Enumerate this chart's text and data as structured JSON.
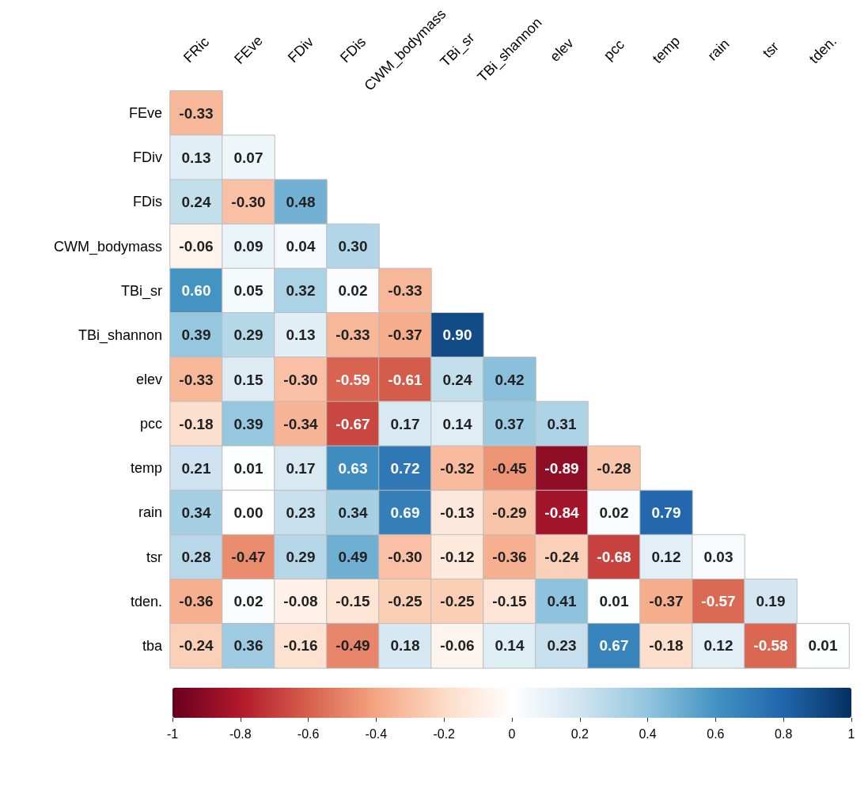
{
  "chart_data": {
    "type": "heatmap",
    "categories": [
      "FRic",
      "FEve",
      "FDiv",
      "FDis",
      "CWM_bodymass",
      "TBi_sr",
      "TBi_shannon",
      "elev",
      "pcc",
      "temp",
      "rain",
      "tsr",
      "tden."
    ],
    "y_categories": [
      "FEve",
      "FDiv",
      "FDis",
      "CWM_bodymass",
      "TBi_sr",
      "TBi_shannon",
      "elev",
      "pcc",
      "temp",
      "rain",
      "tsr",
      "tden.",
      "tba"
    ],
    "cells": [
      [
        -0.33,
        null,
        null,
        null,
        null,
        null,
        null,
        null,
        null,
        null,
        null,
        null,
        null
      ],
      [
        0.13,
        0.07,
        null,
        null,
        null,
        null,
        null,
        null,
        null,
        null,
        null,
        null,
        null
      ],
      [
        0.24,
        -0.3,
        0.48,
        null,
        null,
        null,
        null,
        null,
        null,
        null,
        null,
        null,
        null
      ],
      [
        -0.06,
        0.09,
        0.04,
        0.3,
        null,
        null,
        null,
        null,
        null,
        null,
        null,
        null,
        null
      ],
      [
        0.6,
        0.05,
        0.32,
        0.02,
        -0.33,
        null,
        null,
        null,
        null,
        null,
        null,
        null,
        null
      ],
      [
        0.39,
        0.29,
        0.13,
        -0.33,
        -0.37,
        0.9,
        null,
        null,
        null,
        null,
        null,
        null,
        null
      ],
      [
        -0.33,
        0.15,
        -0.3,
        -0.59,
        -0.61,
        0.24,
        0.42,
        null,
        null,
        null,
        null,
        null,
        null
      ],
      [
        -0.18,
        0.39,
        -0.34,
        -0.67,
        0.17,
        0.14,
        0.37,
        0.31,
        null,
        null,
        null,
        null,
        null
      ],
      [
        0.21,
        0.01,
        0.17,
        0.63,
        0.72,
        -0.32,
        -0.45,
        -0.89,
        -0.28,
        null,
        null,
        null,
        null
      ],
      [
        0.34,
        0.0,
        0.23,
        0.34,
        0.69,
        -0.13,
        -0.29,
        -0.84,
        0.02,
        0.79,
        null,
        null,
        null
      ],
      [
        0.28,
        -0.47,
        0.29,
        0.49,
        -0.3,
        -0.12,
        -0.36,
        -0.24,
        -0.68,
        0.12,
        0.03,
        null,
        null
      ],
      [
        -0.36,
        0.02,
        -0.08,
        -0.15,
        -0.25,
        -0.25,
        -0.15,
        0.41,
        0.01,
        -0.37,
        -0.57,
        0.19,
        null
      ],
      [
        -0.24,
        0.36,
        -0.16,
        -0.49,
        0.18,
        -0.06,
        0.14,
        0.23,
        0.67,
        -0.18,
        0.12,
        -0.58,
        0.01
      ]
    ],
    "data_labels": true,
    "cell_labels": [
      [
        "-0.33",
        null,
        null,
        null,
        null,
        null,
        null,
        null,
        null,
        null,
        null,
        null,
        null
      ],
      [
        "0.13",
        "0.07",
        null,
        null,
        null,
        null,
        null,
        null,
        null,
        null,
        null,
        null,
        null
      ],
      [
        "0.24",
        "-0.30",
        "0.48",
        null,
        null,
        null,
        null,
        null,
        null,
        null,
        null,
        null,
        null
      ],
      [
        "-0.06",
        "0.09",
        "0.04",
        "0.30",
        null,
        null,
        null,
        null,
        null,
        null,
        null,
        null,
        null
      ],
      [
        "0.60",
        "0.05",
        "0.32",
        "0.02",
        "-0.33",
        null,
        null,
        null,
        null,
        null,
        null,
        null,
        null
      ],
      [
        "0.39",
        "0.29",
        "0.13",
        "-0.33",
        "-0.37",
        "0.90",
        null,
        null,
        null,
        null,
        null,
        null,
        null
      ],
      [
        "-0.33",
        "0.15",
        "-0.30",
        "-0.59",
        "-0.61",
        "0.24",
        "0.42",
        null,
        null,
        null,
        null,
        null,
        null
      ],
      [
        "-0.18",
        "0.39",
        "-0.34",
        "-0.67",
        "0.17",
        "0.14",
        "0.37",
        "0.31",
        null,
        null,
        null,
        null,
        null
      ],
      [
        "0.21",
        "0.01",
        "0.17",
        "0.63",
        "0.72",
        "-0.32",
        "-0.45",
        "-0.89",
        "-0.28",
        null,
        null,
        null,
        null
      ],
      [
        "0.34",
        "0.00",
        "0.23",
        "0.34",
        "0.69",
        "-0.13",
        "-0.29",
        "-0.84",
        "0.02",
        "0.79",
        null,
        null,
        null
      ],
      [
        "0.28",
        "-0.47",
        "0.29",
        "0.49",
        "-0.30",
        "-0.12",
        "-0.36",
        "-0.24",
        "-0.68",
        "0.12",
        "0.03",
        null,
        null
      ],
      [
        "-0.36",
        "0.02",
        "-0.08",
        "-0.15",
        "-0.25",
        "-0.25",
        "-0.15",
        "0.41",
        "0.01",
        "-0.37",
        "-0.57",
        "0.19",
        null
      ],
      [
        "-0.24",
        "0.36",
        "-0.16",
        "-0.49",
        "0.18",
        "-0.06",
        "0.14",
        "0.23",
        "0.67",
        "-0.18",
        "0.12",
        "-0.58",
        "0.01"
      ]
    ],
    "clim": [
      -1,
      1
    ],
    "cticks": [
      -1,
      -0.8,
      -0.6,
      -0.4,
      -0.2,
      0,
      0.2,
      0.4,
      0.6,
      0.8,
      1
    ]
  }
}
